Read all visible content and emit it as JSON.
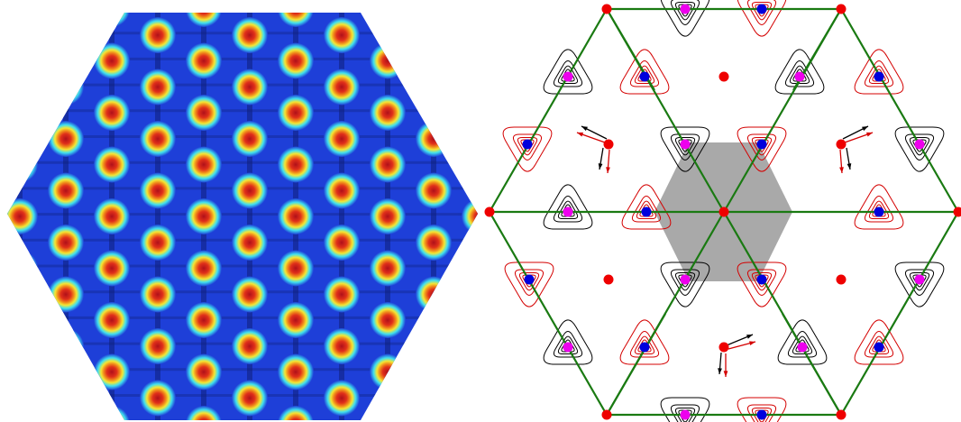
{
  "figure": {
    "left_panel": {
      "kind": "heatmap-lattice",
      "colors": {
        "background": "#1e3fd8",
        "ring_outer": "#3fe0f0",
        "ring_mid": "#f4e634",
        "ring_inner": "#f08a1a",
        "core": "#c8141c",
        "dark_grid": "#10207a"
      }
    },
    "right_panel": {
      "kind": "contour-lattice",
      "colors": {
        "frame": "#1a7a12",
        "contour_black": "#000000",
        "contour_red": "#d40000",
        "site_red": "#ee0000",
        "site_blue": "#0000dd",
        "site_magenta": "#ee00ee",
        "shaded_cell": "#9a9a9a"
      }
    }
  }
}
